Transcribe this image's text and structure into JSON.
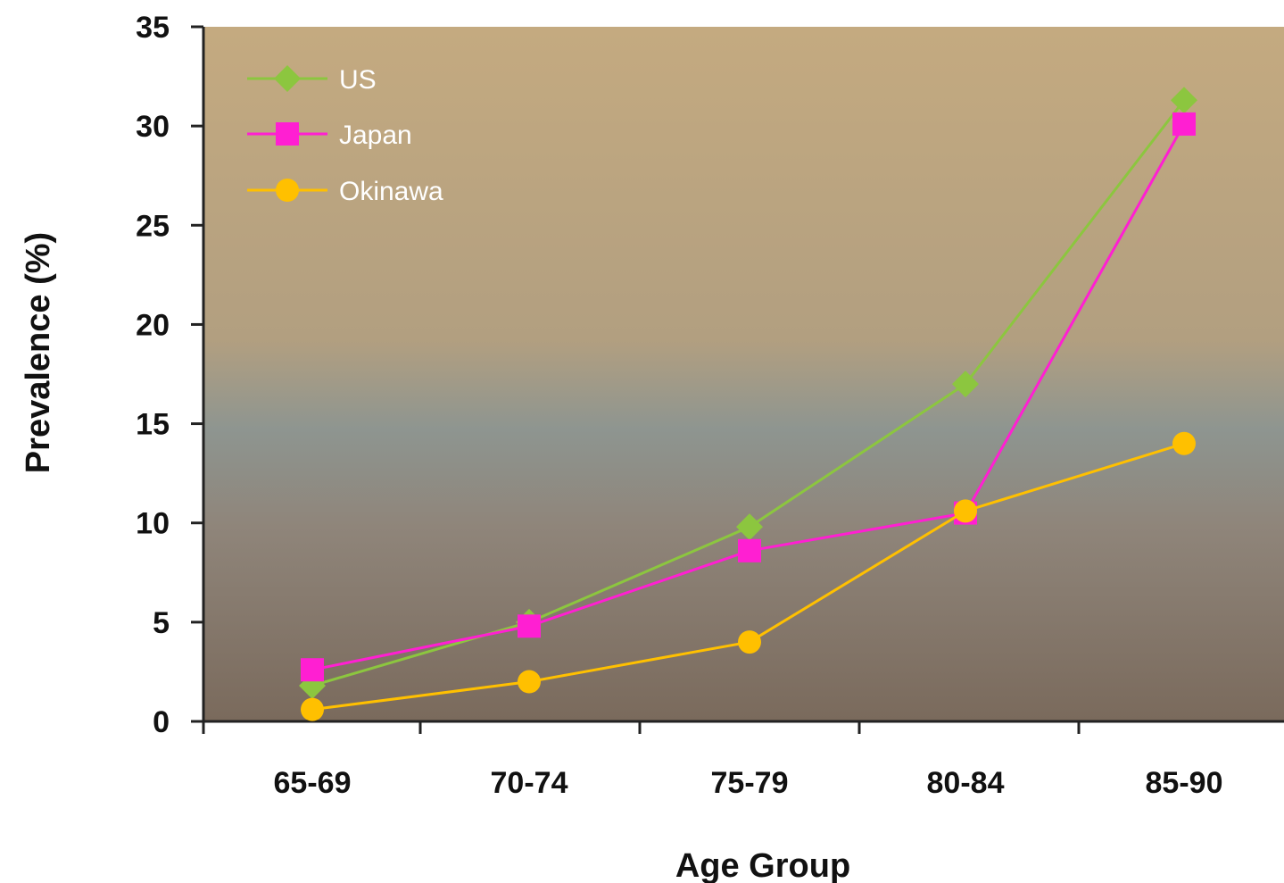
{
  "chart_data": {
    "type": "line",
    "title": "",
    "xlabel": "Age Group",
    "ylabel": "Prevalence (%)",
    "categories": [
      "65-69",
      "70-74",
      "75-79",
      "80-84",
      "85-90"
    ],
    "ylim": [
      0,
      35
    ],
    "yticks": [
      0,
      5,
      10,
      15,
      20,
      25,
      30,
      35
    ],
    "grid": false,
    "legend_position": "top-left",
    "series": [
      {
        "name": "US",
        "values": [
          1.8,
          5.0,
          9.8,
          17.0,
          31.3
        ],
        "color": "#8cc63f",
        "marker": "diamond"
      },
      {
        "name": "Japan",
        "values": [
          2.6,
          4.8,
          8.6,
          10.5,
          30.1
        ],
        "color": "#ff1fd2",
        "marker": "square"
      },
      {
        "name": "Okinawa",
        "values": [
          0.6,
          2.0,
          4.0,
          10.6,
          14.0
        ],
        "color": "#ffc000",
        "marker": "circle"
      }
    ],
    "plot_background": [
      "#c4aa80",
      "#8c9593",
      "#7a6a5c"
    ]
  }
}
